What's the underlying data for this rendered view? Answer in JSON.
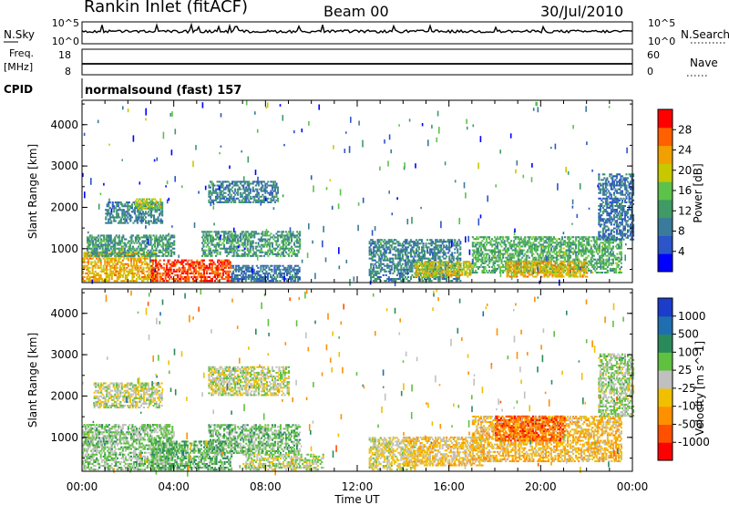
{
  "header": {
    "station": "Rankin Inlet (fitACF)",
    "beam": "Beam 00",
    "date": "30/Jul/2010"
  },
  "status_panels": {
    "nsky_label": "N.Sky",
    "nsky_ticks": [
      "10^5",
      "10^0"
    ],
    "nsearch_label": "N.Search",
    "nsearch_ticks": [
      "10^5",
      "10^0"
    ],
    "freq_label_1": "Freq.",
    "freq_label_2": "[MHz]",
    "freq_ticks": [
      "18",
      "8"
    ],
    "nave_label": "Nave",
    "nave_ticks": [
      "60",
      "0"
    ],
    "cpid_label": "CPID",
    "cpid_text": "normalsound (fast) 157"
  },
  "x_axis": {
    "ticks": [
      "00:00",
      "04:00",
      "08:00",
      "12:00",
      "16:00",
      "20:00",
      "00:00"
    ],
    "tick_hours": [
      0,
      4,
      8,
      12,
      16,
      20,
      24
    ],
    "label": "Time UT",
    "range_hours": [
      0,
      24
    ]
  },
  "y_axis": {
    "label": "Slant Range [km]",
    "ticks": [
      "1000",
      "2000",
      "3000",
      "4000"
    ],
    "tick_values": [
      1000,
      2000,
      3000,
      4000
    ],
    "range_km": [
      180,
      4590
    ]
  },
  "colors": {
    "power_scale": [
      "#0000ff",
      "#2b55c8",
      "#3a7a9a",
      "#3f9a66",
      "#5cc24a",
      "#c8c800",
      "#f0a000",
      "#ff6000",
      "#ff0000"
    ],
    "velocity_scale": [
      "#1c3ccc",
      "#1f6fb0",
      "#2a8a5a",
      "#60c040",
      "#c0c0c0",
      "#f0c000",
      "#ff9000",
      "#ff5000",
      "#ff0000"
    ]
  },
  "chart_data": [
    {
      "type": "heatmap",
      "panel": "power",
      "xlabel": "Time UT",
      "ylabel": "Slant Range [km]",
      "colorbar": {
        "label": "Power [dB]",
        "ticks": [
          "28",
          "24",
          "20",
          "16",
          "12",
          "8",
          "4"
        ],
        "tick_values": [
          28,
          24,
          20,
          16,
          12,
          8,
          4
        ],
        "range": [
          0,
          32
        ]
      },
      "echo_regions": [
        {
          "t": [
            0.0,
            3.2
          ],
          "r": [
            200,
            900
          ],
          "value": 22
        },
        {
          "t": [
            3.0,
            6.5
          ],
          "r": [
            200,
            700
          ],
          "value": 28
        },
        {
          "t": [
            0.2,
            4.0
          ],
          "r": [
            800,
            1300
          ],
          "value": 12
        },
        {
          "t": [
            1.0,
            3.5
          ],
          "r": [
            1600,
            2100
          ],
          "value": 10
        },
        {
          "t": [
            2.3,
            3.4
          ],
          "r": [
            1950,
            2200
          ],
          "value": 18
        },
        {
          "t": [
            5.5,
            8.5
          ],
          "r": [
            2100,
            2600
          ],
          "value": 10
        },
        {
          "t": [
            5.2,
            9.5
          ],
          "r": [
            800,
            1400
          ],
          "value": 12
        },
        {
          "t": [
            6.5,
            9.5
          ],
          "r": [
            200,
            600
          ],
          "value": 8
        },
        {
          "t": [
            12.5,
            16.5
          ],
          "r": [
            200,
            1200
          ],
          "value": 10
        },
        {
          "t": [
            14.5,
            17.0
          ],
          "r": [
            300,
            700
          ],
          "value": 20
        },
        {
          "t": [
            17.0,
            23.5
          ],
          "r": [
            400,
            1300
          ],
          "value": 14
        },
        {
          "t": [
            18.5,
            22.0
          ],
          "r": [
            300,
            700
          ],
          "value": 22
        },
        {
          "t": [
            22.5,
            24.0
          ],
          "r": [
            1200,
            2800
          ],
          "value": 8
        }
      ]
    },
    {
      "type": "heatmap",
      "panel": "velocity",
      "xlabel": "Time UT",
      "ylabel": "Slant Range [km]",
      "colorbar": {
        "label": "Velocity [m s^-1]",
        "ticks": [
          "1000",
          "500",
          "100",
          "25",
          "-25",
          "-100",
          "-500",
          "-1000"
        ],
        "tick_values": [
          1000,
          500,
          100,
          25,
          -25,
          -100,
          -500,
          -1000
        ],
        "range": [
          -1000,
          1000
        ]
      },
      "echo_regions": [
        {
          "t": [
            0.0,
            4.0
          ],
          "r": [
            200,
            1300
          ],
          "value": 150
        },
        {
          "t": [
            3.0,
            6.5
          ],
          "r": [
            200,
            900
          ],
          "value": 300
        },
        {
          "t": [
            0.5,
            3.5
          ],
          "r": [
            1700,
            2300
          ],
          "value": 0
        },
        {
          "t": [
            5.5,
            9.0
          ],
          "r": [
            2000,
            2700
          ],
          "value": 0
        },
        {
          "t": [
            5.5,
            9.5
          ],
          "r": [
            600,
            1300
          ],
          "value": 200
        },
        {
          "t": [
            7.0,
            10.5
          ],
          "r": [
            200,
            600
          ],
          "value": 50
        },
        {
          "t": [
            12.5,
            14.5
          ],
          "r": [
            200,
            1000
          ],
          "value": -60
        },
        {
          "t": [
            14.0,
            17.5
          ],
          "r": [
            300,
            1000
          ],
          "value": -200
        },
        {
          "t": [
            17.0,
            23.5
          ],
          "r": [
            400,
            1500
          ],
          "value": -250
        },
        {
          "t": [
            18.0,
            21.0
          ],
          "r": [
            900,
            1500
          ],
          "value": -600
        },
        {
          "t": [
            22.5,
            24.0
          ],
          "r": [
            1500,
            3000
          ],
          "value": 100
        }
      ]
    }
  ]
}
